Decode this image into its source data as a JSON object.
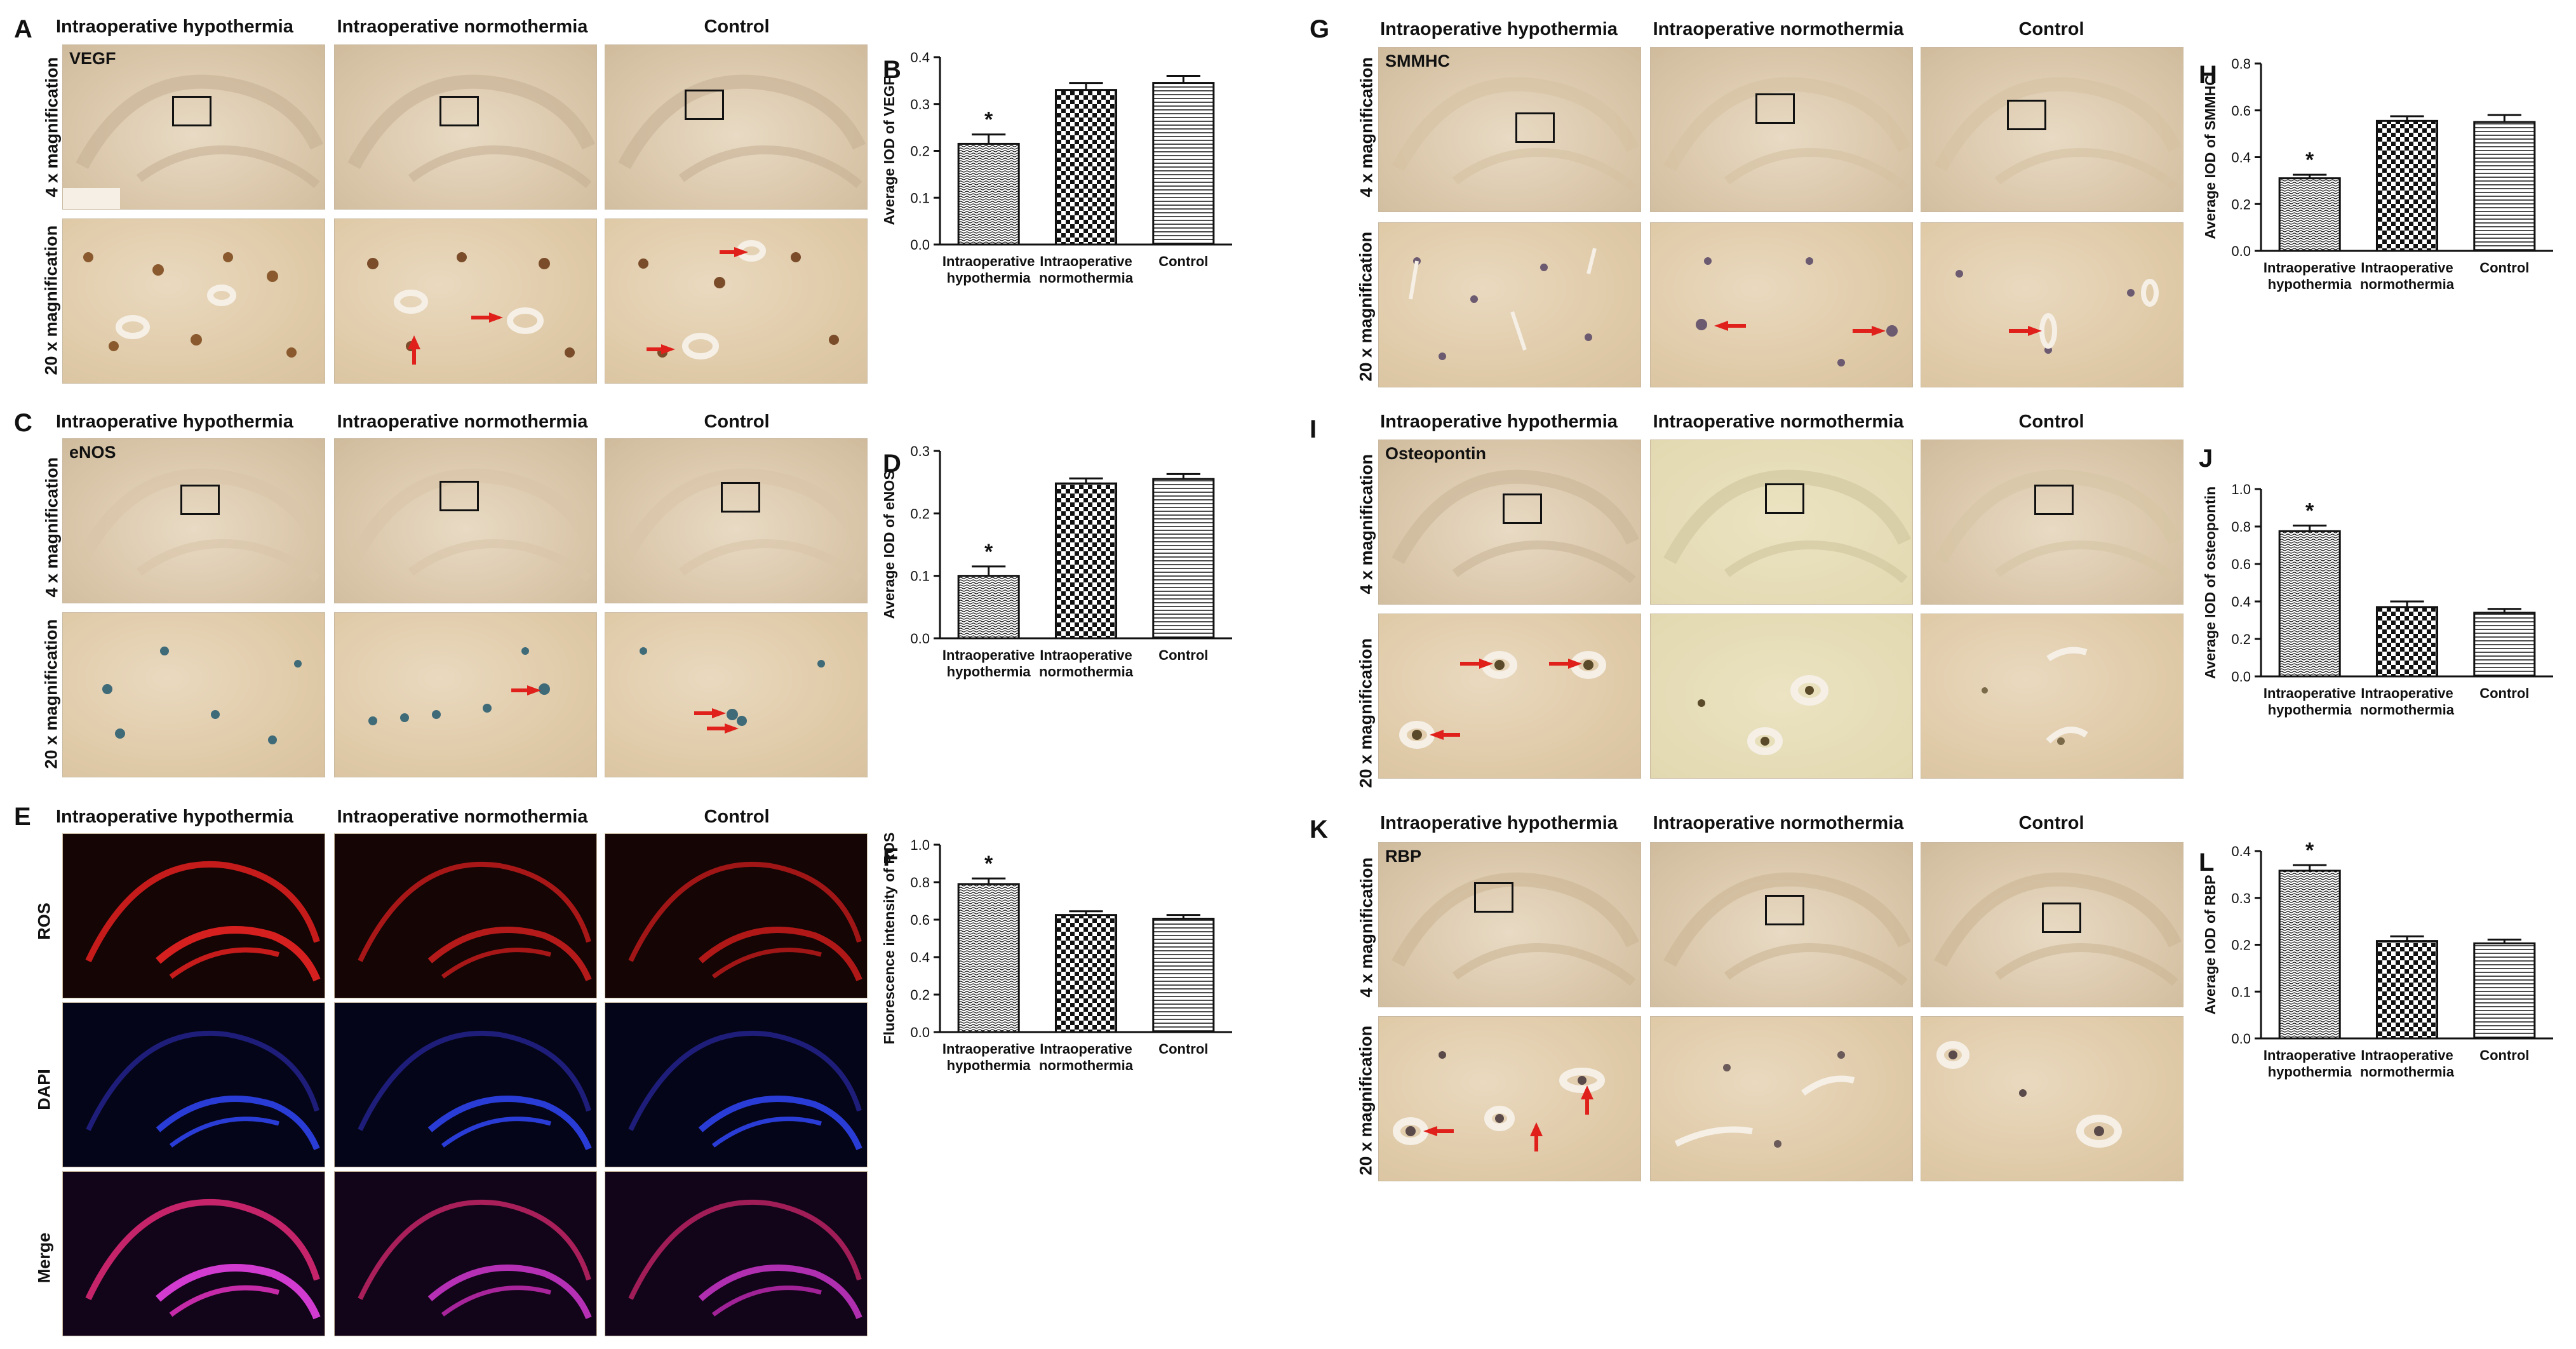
{
  "groups": [
    "Intraoperative hypothermia",
    "Intraoperative normothermia",
    "Control"
  ],
  "row_labels": {
    "low": "4 x magnification",
    "high": "20 x magnification",
    "ros": "ROS",
    "dapi": "DAPI",
    "merge": "Merge"
  },
  "panels": {
    "A": {
      "letter": "A",
      "stain": "VEGF"
    },
    "C": {
      "letter": "C",
      "stain": "eNOS"
    },
    "E": {
      "letter": "E"
    },
    "G": {
      "letter": "G",
      "stain": "SMMHC"
    },
    "I": {
      "letter": "I",
      "stain": "Osteopontin"
    },
    "K": {
      "letter": "K",
      "stain": "RBP"
    }
  },
  "colors": {
    "bar_stroke": "#111111",
    "arrow": "#e0201b"
  },
  "chart_data": [
    {
      "panel": "B",
      "type": "bar",
      "categories": [
        "Intraoperative hypothermia",
        "Intraoperative normothermia",
        "Control"
      ],
      "cat_lines": [
        [
          "Intraoperative",
          "hypothermia"
        ],
        [
          "Intraoperative",
          "normothermia"
        ],
        [
          "Control"
        ]
      ],
      "values": [
        0.215,
        0.33,
        0.345
      ],
      "errors": [
        0.02,
        0.015,
        0.015
      ],
      "significance": [
        "*",
        "",
        ""
      ],
      "ylabel": "Average IOD of VEGF",
      "ylim": [
        0,
        0.4
      ],
      "yticks": [
        0,
        0.1,
        0.2,
        0.3,
        0.4
      ],
      "ytick_labels": [
        "0.0",
        "0.1",
        "0.2",
        "0.3",
        "0.4"
      ],
      "patterns": [
        "wave",
        "check",
        "hline"
      ]
    },
    {
      "panel": "D",
      "type": "bar",
      "categories": [
        "Intraoperative hypothermia",
        "Intraoperative normothermia",
        "Control"
      ],
      "cat_lines": [
        [
          "Intraoperative",
          "hypothermia"
        ],
        [
          "Intraoperative",
          "normothermia"
        ],
        [
          "Control"
        ]
      ],
      "values": [
        0.1,
        0.248,
        0.255
      ],
      "errors": [
        0.015,
        0.008,
        0.008
      ],
      "significance": [
        "*",
        "",
        ""
      ],
      "ylabel": "Average IOD of eNOS",
      "ylim": [
        0,
        0.3
      ],
      "yticks": [
        0,
        0.1,
        0.2,
        0.3
      ],
      "ytick_labels": [
        "0.0",
        "0.1",
        "0.2",
        "0.3"
      ],
      "patterns": [
        "wave",
        "check",
        "hline"
      ]
    },
    {
      "panel": "F",
      "type": "bar",
      "categories": [
        "Intraoperative hypothermia",
        "Intraoperative normothermia",
        "Control"
      ],
      "cat_lines": [
        [
          "Intraoperative",
          "hypothermia"
        ],
        [
          "Intraoperative",
          "normothermia"
        ],
        [
          "Control"
        ]
      ],
      "values": [
        0.79,
        0.625,
        0.605
      ],
      "errors": [
        0.03,
        0.02,
        0.02
      ],
      "significance": [
        "*",
        "",
        ""
      ],
      "ylabel": "Fluorescence intensity of ROS",
      "ylim": [
        0,
        1.0
      ],
      "yticks": [
        0,
        0.2,
        0.4,
        0.6,
        0.8,
        1.0
      ],
      "ytick_labels": [
        "0.0",
        "0.2",
        "0.4",
        "0.6",
        "0.8",
        "1.0"
      ],
      "patterns": [
        "wave",
        "check",
        "hline"
      ]
    },
    {
      "panel": "H",
      "type": "bar",
      "categories": [
        "Intraoperative hypothermia",
        "Intraoperative normothermia",
        "Control"
      ],
      "cat_lines": [
        [
          "Intraoperative",
          "hypothermia"
        ],
        [
          "Intraoperative",
          "normothermia"
        ],
        [
          "Control"
        ]
      ],
      "values": [
        0.31,
        0.555,
        0.55
      ],
      "errors": [
        0.015,
        0.02,
        0.03
      ],
      "significance": [
        "*",
        "",
        ""
      ],
      "ylabel": "Average IOD of SMMHC",
      "ylim": [
        0,
        0.8
      ],
      "yticks": [
        0,
        0.2,
        0.4,
        0.6,
        0.8
      ],
      "ytick_labels": [
        "0.0",
        "0.2",
        "0.4",
        "0.6",
        "0.8"
      ],
      "patterns": [
        "wave",
        "check",
        "hline"
      ]
    },
    {
      "panel": "J",
      "type": "bar",
      "categories": [
        "Intraoperative hypothermia",
        "Intraoperative normothermia",
        "Control"
      ],
      "cat_lines": [
        [
          "Intraoperative",
          "hypothermia"
        ],
        [
          "Intraoperative",
          "normothermia"
        ],
        [
          "Control"
        ]
      ],
      "values": [
        0.775,
        0.37,
        0.34
      ],
      "errors": [
        0.03,
        0.03,
        0.02
      ],
      "significance": [
        "*",
        "",
        ""
      ],
      "ylabel": "Average IOD of osteopontin",
      "ylim": [
        0,
        1.0
      ],
      "yticks": [
        0,
        0.2,
        0.4,
        0.6,
        0.8,
        1.0
      ],
      "ytick_labels": [
        "0.0",
        "0.2",
        "0.4",
        "0.6",
        "0.8",
        "1.0"
      ],
      "patterns": [
        "wave",
        "check",
        "hline"
      ]
    },
    {
      "panel": "L",
      "type": "bar",
      "categories": [
        "Intraoperative hypothermia",
        "Intraoperative normothermia",
        "Control"
      ],
      "cat_lines": [
        [
          "Intraoperative",
          "hypothermia"
        ],
        [
          "Intraoperative",
          "normothermia"
        ],
        [
          "Control"
        ]
      ],
      "values": [
        0.358,
        0.208,
        0.203
      ],
      "errors": [
        0.012,
        0.01,
        0.008
      ],
      "significance": [
        "*",
        "",
        ""
      ],
      "ylabel": "Average IOD of RBP",
      "ylim": [
        0,
        0.4
      ],
      "yticks": [
        0,
        0.1,
        0.2,
        0.3,
        0.4
      ],
      "ytick_labels": [
        "0.0",
        "0.1",
        "0.2",
        "0.3",
        "0.4"
      ],
      "patterns": [
        "wave",
        "check",
        "hline"
      ]
    }
  ]
}
